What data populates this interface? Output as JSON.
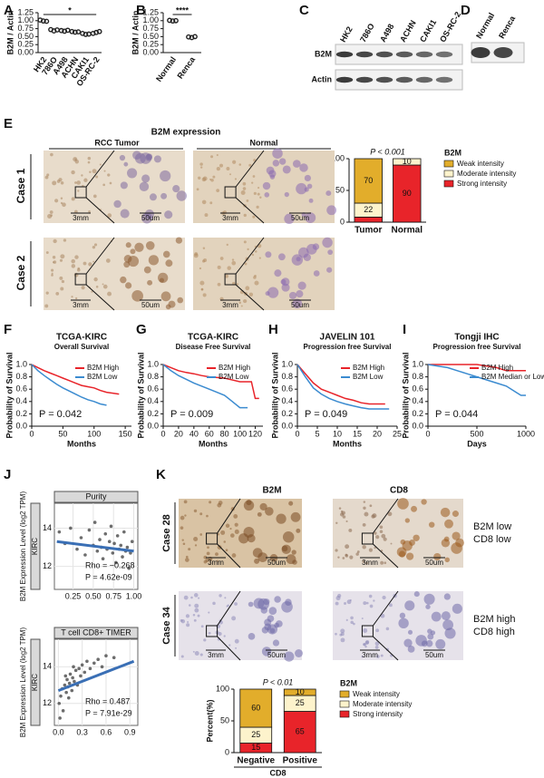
{
  "panel_labels": [
    "A",
    "B",
    "C",
    "D",
    "E",
    "F",
    "G",
    "H",
    "I",
    "J",
    "K"
  ],
  "blot_c": {
    "lanes": [
      "HK2",
      "786O",
      "A498",
      "ACHN",
      "CAKI1",
      "OS-RC-2"
    ],
    "rows": [
      "B2M",
      "Actin"
    ]
  },
  "blot_d": {
    "lanes": [
      "Normal",
      "Renca"
    ]
  },
  "ihc_e": {
    "title": "B2M expression",
    "columns": [
      "RCC Tumor",
      "Normal"
    ],
    "rows": [
      "Case 1",
      "Case 2"
    ],
    "scale_low": "3mm",
    "scale_high": "50um"
  },
  "ihc_k": {
    "columns": [
      "B2M",
      "CD8"
    ],
    "rows": [
      "Case 28",
      "Case 34"
    ],
    "notes": [
      [
        "B2M low",
        "CD8 low"
      ],
      [
        "B2M high",
        "CD8 high"
      ]
    ],
    "scale_low": "3mm",
    "scale_high": "50um"
  },
  "chart_data": [
    {
      "type": "dot",
      "ylabel": "B2M / Actin",
      "annotation": "*",
      "color": "#222222",
      "categories": [
        "HK2",
        "786O",
        "A498",
        "ACHN",
        "CAKI1",
        "OS-RC-2"
      ],
      "values": [
        [
          1.02,
          0.99,
          0.98
        ],
        [
          0.72,
          0.68,
          0.71
        ],
        [
          0.69,
          0.67,
          0.7
        ],
        [
          0.66,
          0.64,
          0.65
        ],
        [
          0.6,
          0.57,
          0.58
        ],
        [
          0.6,
          0.63,
          0.66
        ]
      ],
      "ylim": [
        0,
        1.25
      ],
      "yticks": [
        {
          "value": 0,
          "label": "0.00"
        },
        0.25,
        {
          "value": 0.5,
          "label": "0.50"
        },
        0.75,
        {
          "value": 1,
          "label": "1.00"
        },
        1.25
      ]
    },
    {
      "type": "dot",
      "ylabel": "B2M / Actin",
      "annotation": "****",
      "color": "#222222",
      "categories": [
        "Normal",
        "Renca"
      ],
      "values": [
        [
          1.01,
          0.99,
          1.0
        ],
        [
          0.49,
          0.47,
          0.5
        ]
      ],
      "ylim": [
        0,
        1.25
      ],
      "yticks": [
        {
          "value": 0,
          "label": "0.00"
        },
        0.25,
        {
          "value": 0.5,
          "label": "0.50"
        },
        0.75,
        {
          "value": 1,
          "label": "1.00"
        },
        1.25
      ]
    },
    {
      "type": "stacked_bar",
      "ylabel": "Percent(%)",
      "annotation": "P < 0.001",
      "legend_title": "B2M",
      "categories": [
        "Tumor",
        "Normal"
      ],
      "series": [
        {
          "name": "Weak intensity",
          "color": "#e2ad2b",
          "values": [
            70,
            0
          ]
        },
        {
          "name": "Moderate intensity",
          "color": "#fdf3cc",
          "values": [
            22,
            10
          ]
        },
        {
          "name": "Strong intensity",
          "color": "#e8242a",
          "values": [
            8,
            90
          ]
        }
      ],
      "ylim": [
        0,
        100
      ],
      "yticks": [
        0,
        50,
        100
      ]
    },
    {
      "type": "km",
      "title": "TCGA-KIRC",
      "subtitle": "Overall Survival",
      "xlabel": "Months",
      "ylabel": "Probability of Survival",
      "annotation": "P = 0.042",
      "series": [
        {
          "name": "B2M High",
          "color": "#e8242a",
          "x": [
            0,
            10,
            20,
            30,
            40,
            50,
            60,
            70,
            80,
            90,
            100,
            110,
            120,
            140
          ],
          "values": [
            1,
            0.95,
            0.9,
            0.86,
            0.82,
            0.78,
            0.74,
            0.7,
            0.66,
            0.64,
            0.62,
            0.58,
            0.55,
            0.52
          ]
        },
        {
          "name": "B2M Low",
          "color": "#3b8bd0",
          "x": [
            0,
            10,
            20,
            30,
            40,
            50,
            60,
            70,
            80,
            90,
            100,
            110,
            120
          ],
          "values": [
            1,
            0.9,
            0.82,
            0.75,
            0.68,
            0.62,
            0.57,
            0.52,
            0.47,
            0.43,
            0.4,
            0.36,
            0.34
          ]
        }
      ],
      "xlim": [
        0,
        160
      ],
      "xticks": [
        0,
        50,
        100,
        150
      ],
      "ylim": [
        0,
        1
      ],
      "yticks": [
        {
          "value": 0,
          "label": "0.0"
        },
        0.2,
        0.4,
        0.6,
        0.8,
        {
          "value": 1,
          "label": "1.0"
        }
      ]
    },
    {
      "type": "km",
      "title": "TCGA-KIRC",
      "subtitle": "Disease Free Survival",
      "xlabel": "Months",
      "ylabel": "Probability of Survival",
      "annotation": "P = 0.009",
      "series": [
        {
          "name": "B2M High",
          "color": "#e8242a",
          "x": [
            0,
            10,
            20,
            30,
            40,
            50,
            60,
            80,
            100,
            115,
            120,
            125
          ],
          "values": [
            1,
            0.95,
            0.9,
            0.87,
            0.85,
            0.82,
            0.8,
            0.78,
            0.72,
            0.72,
            0.45,
            0.45
          ]
        },
        {
          "name": "B2M Low",
          "color": "#3b8bd0",
          "x": [
            0,
            10,
            20,
            30,
            40,
            50,
            60,
            70,
            80,
            90,
            100,
            110
          ],
          "values": [
            1,
            0.9,
            0.82,
            0.76,
            0.7,
            0.65,
            0.6,
            0.55,
            0.5,
            0.4,
            0.3,
            0.3
          ]
        }
      ],
      "xlim": [
        0,
        130
      ],
      "xticks": [
        0,
        20,
        40,
        60,
        80,
        100,
        120
      ],
      "ylim": [
        0,
        1
      ],
      "yticks": [
        {
          "value": 0,
          "label": "0.0"
        },
        0.2,
        0.4,
        0.6,
        0.8,
        {
          "value": 1,
          "label": "1.0"
        }
      ]
    },
    {
      "type": "km",
      "title": "JAVELIN 101",
      "subtitle": "Progression free Survival",
      "xlabel": "Months",
      "ylabel": "Probability of Survival",
      "annotation": "P = 0.049",
      "series": [
        {
          "name": "B2M High",
          "color": "#e8242a",
          "x": [
            0,
            2,
            4,
            6,
            8,
            10,
            12,
            14,
            16,
            18,
            20,
            22
          ],
          "values": [
            1,
            0.85,
            0.7,
            0.6,
            0.55,
            0.5,
            0.45,
            0.42,
            0.38,
            0.36,
            0.36,
            0.36
          ]
        },
        {
          "name": "B2M Low",
          "color": "#3b8bd0",
          "x": [
            0,
            2,
            4,
            6,
            8,
            10,
            12,
            14,
            16,
            18,
            20,
            23
          ],
          "values": [
            1,
            0.8,
            0.62,
            0.52,
            0.45,
            0.4,
            0.36,
            0.33,
            0.3,
            0.28,
            0.28,
            0.28
          ]
        }
      ],
      "xlim": [
        0,
        25
      ],
      "xticks": [
        0,
        5,
        10,
        15,
        20,
        25
      ],
      "ylim": [
        0,
        1
      ],
      "yticks": [
        {
          "value": 0,
          "label": "0.0"
        },
        0.2,
        0.4,
        0.6,
        0.8,
        {
          "value": 1,
          "label": "1.0"
        }
      ]
    },
    {
      "type": "km",
      "title": "Tongji IHC",
      "subtitle": "Progression free Survival",
      "xlabel": "Days",
      "ylabel": "Probability of Survival",
      "annotation": "P = 0.044",
      "series": [
        {
          "name": "B2M High",
          "color": "#e8242a",
          "x": [
            0,
            300,
            500,
            700,
            800,
            1000
          ],
          "values": [
            1,
            1,
            1,
            0.95,
            0.9,
            0.9
          ]
        },
        {
          "name": "B2M Median or Low",
          "color": "#3b8bd0",
          "x": [
            0,
            200,
            300,
            400,
            500,
            600,
            700,
            800,
            900,
            950,
            1000
          ],
          "values": [
            1,
            0.95,
            0.9,
            0.85,
            0.8,
            0.75,
            0.7,
            0.65,
            0.55,
            0.5,
            0.5
          ]
        }
      ],
      "xlim": [
        0,
        1000
      ],
      "xticks": [
        0,
        500,
        1000
      ],
      "ylim": [
        0,
        1
      ],
      "yticks": [
        {
          "value": 0,
          "label": "0.0"
        },
        0.2,
        0.4,
        0.6,
        0.8,
        {
          "value": 1,
          "label": "1.0"
        }
      ]
    },
    {
      "type": "scatter",
      "title": "Purity",
      "side_label": "KIRC",
      "ylabel": "B2M Expression Level (log2 TPM)",
      "rho_text": "Rho = −0.268",
      "p_text": "P = 4.62e-09",
      "point_color": "#3c3c3c",
      "trend_color": "#3a6fb5",
      "x": [
        0.08,
        0.15,
        0.22,
        0.3,
        0.35,
        0.4,
        0.45,
        0.5,
        0.52,
        0.55,
        0.58,
        0.6,
        0.62,
        0.65,
        0.67,
        0.7,
        0.72,
        0.74,
        0.76,
        0.78,
        0.8,
        0.82,
        0.84,
        0.86,
        0.88,
        0.9,
        0.92,
        0.94,
        0.96,
        0.98
      ],
      "values": [
        13.8,
        13.2,
        14.0,
        12.9,
        13.5,
        12.6,
        13.9,
        13.1,
        14.3,
        12.8,
        13.4,
        13.0,
        12.4,
        13.7,
        12.9,
        13.3,
        14.1,
        12.7,
        13.2,
        12.2,
        13.6,
        12.9,
        13.1,
        12.5,
        13.8,
        12.8,
        13.0,
        11.9,
        12.7,
        13.3
      ],
      "trend": {
        "x": [
          0.05,
          1.0
        ],
        "values": [
          13.3,
          12.8
        ]
      },
      "xlim": [
        0.02,
        1.05
      ],
      "xticks": [
        0.25,
        {
          "value": 0.5,
          "label": "0.50"
        },
        0.75,
        {
          "value": 1,
          "label": "1.00"
        }
      ],
      "ylim": [
        10.8,
        15.3
      ],
      "yticks": [
        12,
        14
      ]
    },
    {
      "type": "scatter",
      "title": "T cell CD8+ TIMER",
      "side_label": "KIRC",
      "ylabel": "B2M Expression Level (log2 TPM)",
      "rho_text": "Rho = 0.487",
      "p_text": "P = 7.91e-29",
      "point_color": "#3c3c3c",
      "trend_color": "#3a6fb5",
      "x": [
        0.01,
        0.03,
        0.05,
        0.06,
        0.08,
        0.1,
        0.11,
        0.12,
        0.14,
        0.15,
        0.17,
        0.18,
        0.2,
        0.22,
        0.24,
        0.26,
        0.28,
        0.3,
        0.33,
        0.36,
        0.4,
        0.45,
        0.5,
        0.55,
        0.6,
        0.7,
        0.02,
        0.09,
        0.13,
        0.19
      ],
      "values": [
        12.0,
        12.4,
        12.8,
        11.6,
        13.0,
        12.6,
        13.3,
        12.9,
        13.1,
        13.6,
        12.7,
        13.4,
        13.2,
        13.8,
        13.0,
        13.9,
        13.5,
        14.1,
        13.7,
        14.3,
        13.9,
        14.2,
        14.4,
        14.0,
        14.6,
        14.5,
        11.2,
        13.5,
        12.3,
        14.0
      ],
      "trend": {
        "x": [
          0,
          0.95
        ],
        "values": [
          12.7,
          14.3
        ]
      },
      "xlim": [
        -0.05,
        1.0
      ],
      "xticks": [
        {
          "value": 0,
          "label": "0.0"
        },
        0.3,
        0.6,
        0.9
      ],
      "ylim": [
        10.8,
        15.5
      ],
      "yticks": [
        12,
        14
      ]
    },
    {
      "type": "stacked_bar",
      "ylabel": "Percent(%)",
      "xlabel": "CD8",
      "annotation": "P < 0.01",
      "legend_title": "B2M",
      "categories": [
        "Negative",
        "Positive"
      ],
      "series": [
        {
          "name": "Weak intensity",
          "color": "#e2ad2b",
          "values": [
            60,
            10
          ]
        },
        {
          "name": "Moderate intensity",
          "color": "#fdf3cc",
          "values": [
            25,
            25
          ]
        },
        {
          "name": "Strong intensity",
          "color": "#e8242a",
          "values": [
            15,
            65
          ]
        }
      ],
      "ylim": [
        0,
        100
      ],
      "yticks": [
        0,
        50,
        100
      ]
    }
  ]
}
